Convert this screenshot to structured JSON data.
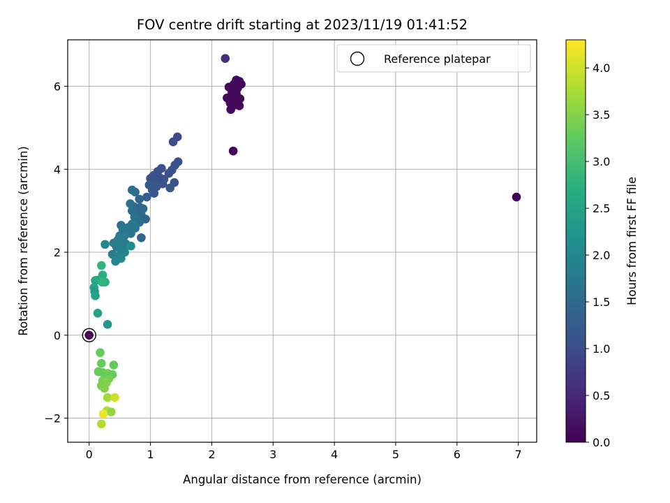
{
  "chart_data": {
    "type": "scatter",
    "title": "FOV centre drift starting at 2023/11/19 01:41:52",
    "xlabel": "Angular distance from reference (arcmin)",
    "ylabel": "Rotation from reference (arcmin)",
    "xlim": [
      -0.35,
      7.3
    ],
    "ylim": [
      -2.58,
      7.12
    ],
    "xticks": [
      "0",
      "1",
      "2",
      "3",
      "4",
      "5",
      "6",
      "7"
    ],
    "yticks": [
      "−2",
      "0",
      "2",
      "4",
      "6"
    ],
    "xtick_values": [
      0,
      1,
      2,
      3,
      4,
      5,
      6,
      7
    ],
    "ytick_values": [
      -2,
      0,
      2,
      4,
      6
    ],
    "grid": true,
    "legend": {
      "position": "top-right",
      "entries": [
        "Reference platepar"
      ]
    },
    "colormap": "viridis",
    "colorbar": {
      "label": "Hours from first FF file",
      "range": [
        0.0,
        4.3
      ],
      "ticks": [
        "0.0",
        "0.5",
        "1.0",
        "1.5",
        "2.0",
        "2.5",
        "3.0",
        "3.5",
        "4.0"
      ],
      "tick_values": [
        0,
        0.5,
        1.0,
        1.5,
        2.0,
        2.5,
        3.0,
        3.5,
        4.0
      ]
    },
    "reference": {
      "x": 0,
      "y": 0
    },
    "points": [
      {
        "x": 0.0,
        "y": 0.0,
        "c": 0.0
      },
      {
        "x": 6.97,
        "y": 3.33,
        "c": 0.02
      },
      {
        "x": 2.35,
        "y": 4.44,
        "c": 0.05
      },
      {
        "x": 2.22,
        "y": 6.67,
        "c": 0.6
      },
      {
        "x": 2.4,
        "y": 6.15,
        "c": 0.1
      },
      {
        "x": 2.45,
        "y": 6.12,
        "c": 0.1
      },
      {
        "x": 2.36,
        "y": 6.05,
        "c": 0.1
      },
      {
        "x": 2.48,
        "y": 6.05,
        "c": 0.1
      },
      {
        "x": 2.28,
        "y": 5.98,
        "c": 0.1
      },
      {
        "x": 2.42,
        "y": 5.95,
        "c": 0.1
      },
      {
        "x": 2.33,
        "y": 5.85,
        "c": 0.1
      },
      {
        "x": 2.4,
        "y": 5.82,
        "c": 0.1
      },
      {
        "x": 2.25,
        "y": 5.72,
        "c": 0.1
      },
      {
        "x": 2.46,
        "y": 5.7,
        "c": 0.1
      },
      {
        "x": 2.35,
        "y": 5.68,
        "c": 0.1
      },
      {
        "x": 2.3,
        "y": 5.6,
        "c": 0.1
      },
      {
        "x": 2.38,
        "y": 5.55,
        "c": 0.1
      },
      {
        "x": 2.45,
        "y": 5.53,
        "c": 0.1
      },
      {
        "x": 2.31,
        "y": 5.44,
        "c": 0.1
      },
      {
        "x": 1.44,
        "y": 4.78,
        "c": 1.0
      },
      {
        "x": 1.37,
        "y": 4.66,
        "c": 1.0
      },
      {
        "x": 1.45,
        "y": 4.18,
        "c": 1.1
      },
      {
        "x": 1.4,
        "y": 4.1,
        "c": 1.1
      },
      {
        "x": 1.35,
        "y": 3.98,
        "c": 1.1
      },
      {
        "x": 1.18,
        "y": 4.02,
        "c": 1.1
      },
      {
        "x": 1.12,
        "y": 3.95,
        "c": 1.1
      },
      {
        "x": 1.3,
        "y": 3.9,
        "c": 1.1
      },
      {
        "x": 1.05,
        "y": 3.85,
        "c": 1.1
      },
      {
        "x": 1.15,
        "y": 3.8,
        "c": 1.1
      },
      {
        "x": 1.0,
        "y": 3.78,
        "c": 1.1
      },
      {
        "x": 1.22,
        "y": 3.76,
        "c": 1.1
      },
      {
        "x": 1.08,
        "y": 3.72,
        "c": 1.1
      },
      {
        "x": 1.39,
        "y": 3.68,
        "c": 1.1
      },
      {
        "x": 1.2,
        "y": 3.65,
        "c": 1.1
      },
      {
        "x": 0.98,
        "y": 3.62,
        "c": 1.2
      },
      {
        "x": 1.1,
        "y": 3.58,
        "c": 1.2
      },
      {
        "x": 1.32,
        "y": 3.55,
        "c": 1.2
      },
      {
        "x": 1.03,
        "y": 3.5,
        "c": 1.2
      },
      {
        "x": 0.7,
        "y": 3.5,
        "c": 1.6
      },
      {
        "x": 0.75,
        "y": 3.45,
        "c": 1.6
      },
      {
        "x": 1.06,
        "y": 3.42,
        "c": 1.2
      },
      {
        "x": 0.94,
        "y": 3.33,
        "c": 1.3
      },
      {
        "x": 0.82,
        "y": 3.28,
        "c": 1.4
      },
      {
        "x": 0.67,
        "y": 3.17,
        "c": 1.6
      },
      {
        "x": 0.73,
        "y": 3.1,
        "c": 1.6
      },
      {
        "x": 0.83,
        "y": 3.08,
        "c": 1.4
      },
      {
        "x": 0.88,
        "y": 3.05,
        "c": 1.5
      },
      {
        "x": 0.7,
        "y": 3.0,
        "c": 1.6
      },
      {
        "x": 0.8,
        "y": 2.98,
        "c": 1.5
      },
      {
        "x": 0.85,
        "y": 2.9,
        "c": 1.5
      },
      {
        "x": 0.74,
        "y": 2.85,
        "c": 1.6
      },
      {
        "x": 0.92,
        "y": 2.8,
        "c": 1.4
      },
      {
        "x": 0.77,
        "y": 2.75,
        "c": 1.6
      },
      {
        "x": 0.82,
        "y": 2.72,
        "c": 1.6
      },
      {
        "x": 0.7,
        "y": 2.68,
        "c": 1.7
      },
      {
        "x": 0.52,
        "y": 2.65,
        "c": 1.6
      },
      {
        "x": 0.64,
        "y": 2.6,
        "c": 1.7
      },
      {
        "x": 0.75,
        "y": 2.58,
        "c": 1.7
      },
      {
        "x": 0.55,
        "y": 2.55,
        "c": 1.7
      },
      {
        "x": 0.6,
        "y": 2.48,
        "c": 1.7
      },
      {
        "x": 0.68,
        "y": 2.45,
        "c": 1.7
      },
      {
        "x": 0.5,
        "y": 2.4,
        "c": 1.8
      },
      {
        "x": 0.57,
        "y": 2.38,
        "c": 1.8
      },
      {
        "x": 0.85,
        "y": 2.35,
        "c": 1.4
      },
      {
        "x": 0.47,
        "y": 2.3,
        "c": 1.8
      },
      {
        "x": 0.55,
        "y": 2.25,
        "c": 1.8
      },
      {
        "x": 0.4,
        "y": 2.22,
        "c": 1.8
      },
      {
        "x": 0.6,
        "y": 2.2,
        "c": 1.8
      },
      {
        "x": 0.26,
        "y": 2.19,
        "c": 2.0
      },
      {
        "x": 0.68,
        "y": 2.15,
        "c": 2.1
      },
      {
        "x": 0.45,
        "y": 2.12,
        "c": 1.8
      },
      {
        "x": 0.52,
        "y": 2.05,
        "c": 1.9
      },
      {
        "x": 0.58,
        "y": 2.0,
        "c": 1.9
      },
      {
        "x": 0.38,
        "y": 1.95,
        "c": 1.8
      },
      {
        "x": 0.48,
        "y": 1.9,
        "c": 1.9
      },
      {
        "x": 0.52,
        "y": 1.85,
        "c": 2.0
      },
      {
        "x": 0.43,
        "y": 1.78,
        "c": 2.0
      },
      {
        "x": 0.2,
        "y": 1.68,
        "c": 2.8
      },
      {
        "x": 0.22,
        "y": 1.45,
        "c": 2.7
      },
      {
        "x": 0.15,
        "y": 1.33,
        "c": 2.7
      },
      {
        "x": 0.1,
        "y": 1.32,
        "c": 2.6
      },
      {
        "x": 0.26,
        "y": 1.28,
        "c": 2.7
      },
      {
        "x": 0.21,
        "y": 1.28,
        "c": 2.8
      },
      {
        "x": 0.08,
        "y": 1.15,
        "c": 2.5
      },
      {
        "x": 0.09,
        "y": 1.05,
        "c": 2.4
      },
      {
        "x": 0.1,
        "y": 0.95,
        "c": 2.5
      },
      {
        "x": 0.14,
        "y": 0.53,
        "c": 2.5
      },
      {
        "x": 0.3,
        "y": 0.26,
        "c": 2.3
      },
      {
        "x": 0.18,
        "y": -0.42,
        "c": 3.3
      },
      {
        "x": 0.4,
        "y": -0.72,
        "c": 3.3
      },
      {
        "x": 0.2,
        "y": -0.68,
        "c": 3.3
      },
      {
        "x": 0.15,
        "y": -0.88,
        "c": 3.3
      },
      {
        "x": 0.22,
        "y": -0.9,
        "c": 3.3
      },
      {
        "x": 0.3,
        "y": -0.92,
        "c": 3.4
      },
      {
        "x": 0.38,
        "y": -0.95,
        "c": 3.3
      },
      {
        "x": 0.26,
        "y": -1.0,
        "c": 3.3
      },
      {
        "x": 0.32,
        "y": -1.05,
        "c": 3.4
      },
      {
        "x": 0.22,
        "y": -1.1,
        "c": 3.4
      },
      {
        "x": 0.28,
        "y": -1.15,
        "c": 3.5
      },
      {
        "x": 0.2,
        "y": -1.22,
        "c": 3.4
      },
      {
        "x": 0.25,
        "y": -1.28,
        "c": 3.5
      },
      {
        "x": 0.3,
        "y": -1.5,
        "c": 3.7
      },
      {
        "x": 0.42,
        "y": -1.5,
        "c": 4.0
      },
      {
        "x": 0.29,
        "y": -1.82,
        "c": 3.8
      },
      {
        "x": 0.36,
        "y": -1.85,
        "c": 3.6
      },
      {
        "x": 0.23,
        "y": -1.9,
        "c": 4.2
      },
      {
        "x": 0.2,
        "y": -2.14,
        "c": 3.8
      }
    ]
  }
}
